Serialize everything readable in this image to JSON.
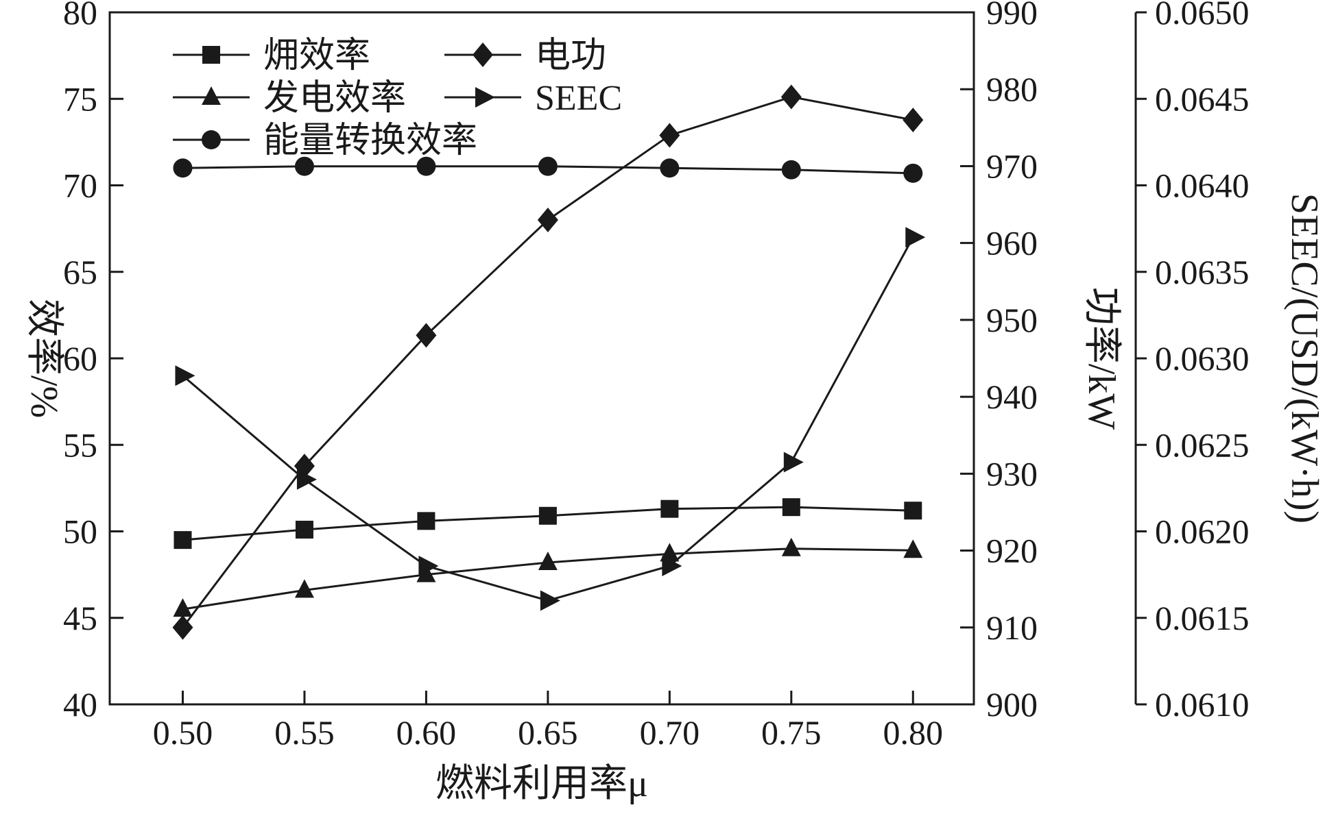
{
  "figure": {
    "background": "#ffffff"
  },
  "chart_data": {
    "type": "line",
    "line_color": "#1a1a1a",
    "x_axis": {
      "label": "燃料利用率μ",
      "range": [
        0.47,
        0.825
      ],
      "tick_values": [
        0.5,
        0.55,
        0.6,
        0.65,
        0.7,
        0.75,
        0.8
      ],
      "tick_labels": [
        "0.50",
        "0.55",
        "0.60",
        "0.65",
        "0.70",
        "0.75",
        "0.80"
      ]
    },
    "y_axes": {
      "efficiency": {
        "label": "效率/%",
        "side": "left",
        "range": [
          40,
          80
        ],
        "tick_values": [
          40,
          45,
          50,
          55,
          60,
          65,
          70,
          75,
          80
        ],
        "tick_labels": [
          "40",
          "45",
          "50",
          "55",
          "60",
          "65",
          "70",
          "75",
          "80"
        ]
      },
      "power": {
        "label": "功率/kW",
        "side": "right",
        "range": [
          900,
          990
        ],
        "tick_values": [
          900,
          910,
          920,
          930,
          940,
          950,
          960,
          970,
          980,
          990
        ],
        "tick_labels": [
          "900",
          "910",
          "920",
          "930",
          "940",
          "950",
          "960",
          "970",
          "980",
          "990"
        ]
      },
      "seec": {
        "label": "SEEC/(USD/(kW·h))",
        "side": "right-offset",
        "range": [
          0.061,
          0.065
        ],
        "tick_values": [
          0.061,
          0.0615,
          0.062,
          0.0625,
          0.063,
          0.0635,
          0.064,
          0.0645,
          0.065
        ],
        "tick_labels": [
          "0.0610",
          "0.0615",
          "0.0620",
          "0.0625",
          "0.0630",
          "0.0635",
          "0.0640",
          "0.0645",
          "0.0650"
        ]
      }
    },
    "x": [
      0.5,
      0.55,
      0.6,
      0.65,
      0.7,
      0.75,
      0.8
    ],
    "series": [
      {
        "name": "㶲效率",
        "slug": "exergy-efficiency",
        "axis": "efficiency",
        "marker": "square",
        "values": [
          49.5,
          50.1,
          50.6,
          50.9,
          51.3,
          51.4,
          51.2
        ]
      },
      {
        "name": "电功",
        "slug": "electric-power",
        "axis": "power",
        "marker": "diamond",
        "values": [
          910,
          931,
          948,
          963,
          974,
          979,
          976
        ]
      },
      {
        "name": "发电效率",
        "slug": "generation-efficiency",
        "axis": "efficiency",
        "marker": "triangle-up",
        "values": [
          45.5,
          46.6,
          47.5,
          48.2,
          48.7,
          49.0,
          48.9
        ]
      },
      {
        "name": "SEEC",
        "slug": "seec",
        "axis": "seec",
        "marker": "triangle-right",
        "values": [
          0.0629,
          0.0623,
          0.0618,
          0.0616,
          0.0618,
          0.0624,
          0.0637
        ]
      },
      {
        "name": "能量转换效率",
        "slug": "energy-conversion-efficiency",
        "axis": "efficiency",
        "marker": "circle",
        "values": [
          71.0,
          71.1,
          71.1,
          71.1,
          71.0,
          70.9,
          70.7
        ]
      }
    ],
    "legend": {
      "entries": [
        {
          "label": "㶲效率",
          "row": 0,
          "col": 0
        },
        {
          "label": "电功",
          "row": 0,
          "col": 1
        },
        {
          "label": "发电效率",
          "row": 1,
          "col": 0
        },
        {
          "label": "SEEC",
          "row": 1,
          "col": 1
        },
        {
          "label": "能量转换效率",
          "row": 2,
          "col": 0
        }
      ]
    }
  }
}
